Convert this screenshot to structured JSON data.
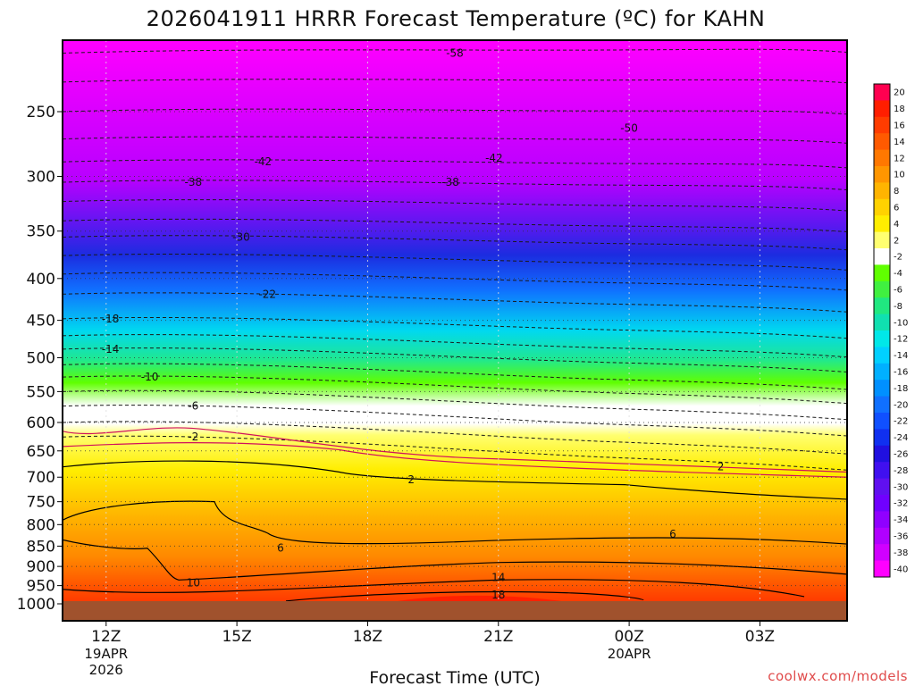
{
  "chart_data": {
    "type": "heatmap",
    "title": "2026041911 HRRR Forecast Temperature (ºC) for KAHN",
    "xlabel": "Forecast Time (UTC)",
    "ylabel": "",
    "y_scale": "log-pressure",
    "ylim": [
      1000,
      200
    ],
    "y_ticks": [
      250,
      300,
      350,
      400,
      450,
      500,
      550,
      600,
      650,
      700,
      750,
      800,
      850,
      900,
      950,
      1000
    ],
    "x_ticks": [
      {
        "label": "12Z",
        "date": "19APR",
        "year": "2026",
        "hour": 0
      },
      {
        "label": "15Z",
        "date": "",
        "year": "",
        "hour": 3
      },
      {
        "label": "18Z",
        "date": "",
        "year": "",
        "hour": 6
      },
      {
        "label": "21Z",
        "date": "",
        "year": "",
        "hour": 9
      },
      {
        "label": "00Z",
        "date": "20APR",
        "year": "",
        "hour": 12
      },
      {
        "label": "03Z",
        "date": "",
        "year": "",
        "hour": 15
      }
    ],
    "xlim_hours": [
      -1,
      17
    ],
    "grid": true,
    "colorbar": {
      "labels": [
        "20",
        "18",
        "16",
        "14",
        "12",
        "10",
        "8",
        "6",
        "4",
        "2",
        "-2",
        "-4",
        "-6",
        "-8",
        "-10",
        "-12",
        "-14",
        "-16",
        "-18",
        "-20",
        "-22",
        "-24",
        "-26",
        "-28",
        "-30",
        "-32",
        "-34",
        "-36",
        "-38",
        "-40"
      ],
      "colors": [
        "#ff0050",
        "#ff1e00",
        "#ff3c00",
        "#ff5a00",
        "#ff7800",
        "#ff9600",
        "#ffb400",
        "#ffd200",
        "#ffee00",
        "#ffff70",
        "#ffffff",
        "#60ff00",
        "#40f040",
        "#20e880",
        "#10e0b0",
        "#00e8e8",
        "#00d0ff",
        "#00b0ff",
        "#0090ff",
        "#1070ff",
        "#1050ff",
        "#1030f0",
        "#2010e0",
        "#4010f0",
        "#6010f0",
        "#7000ff",
        "#9000ff",
        "#b000ff",
        "#d000ff",
        "#ff00ff"
      ]
    },
    "surface_color": "#a0522d",
    "contour_labels": [
      {
        "text": "-58",
        "hour": 8.0,
        "p": 212
      },
      {
        "text": "-50",
        "hour": 12.0,
        "p": 262
      },
      {
        "text": "-42",
        "hour": 3.6,
        "p": 288
      },
      {
        "text": "-42",
        "hour": 8.9,
        "p": 285
      },
      {
        "text": "-38",
        "hour": 2.0,
        "p": 305
      },
      {
        "text": "-38",
        "hour": 7.9,
        "p": 305
      },
      {
        "text": "-30",
        "hour": 3.1,
        "p": 356
      },
      {
        "text": "-22",
        "hour": 3.7,
        "p": 418
      },
      {
        "text": "-18",
        "hour": 0.1,
        "p": 448
      },
      {
        "text": "-14",
        "hour": 0.1,
        "p": 488
      },
      {
        "text": "-10",
        "hour": 1.0,
        "p": 528
      },
      {
        "text": "-6",
        "hour": 2.0,
        "p": 573
      },
      {
        "text": "-2",
        "hour": 2.0,
        "p": 625
      },
      {
        "text": "2",
        "hour": 14.1,
        "p": 680
      },
      {
        "text": "2",
        "hour": 7.0,
        "p": 705
      },
      {
        "text": "6",
        "hour": 13.0,
        "p": 822
      },
      {
        "text": "6",
        "hour": 4.0,
        "p": 855
      },
      {
        "text": "10",
        "hour": 2.0,
        "p": 942
      },
      {
        "text": "14",
        "hour": 9.0,
        "p": 928
      },
      {
        "text": "18",
        "hour": 9.0,
        "p": 975
      }
    ]
  },
  "credit": "coolwx.com/models"
}
